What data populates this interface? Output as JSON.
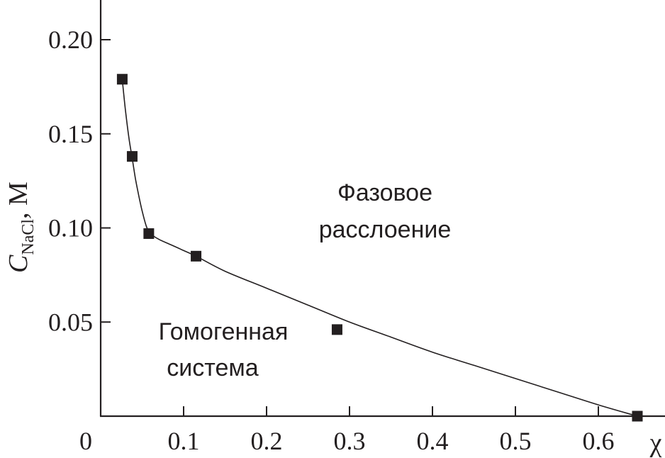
{
  "chart_data": {
    "type": "scatter",
    "title": "",
    "xlabel": "χ",
    "ylabel": {
      "main": "C",
      "subscript": "NaCl",
      "unit": ", М"
    },
    "x_origin_label": "0",
    "xlim": [
      0,
      0.68
    ],
    "ylim": [
      0,
      0.22
    ],
    "x_ticks": [
      0.1,
      0.2,
      0.3,
      0.4,
      0.5,
      0.6
    ],
    "x_tick_labels": [
      "0.1",
      "0.2",
      "0.3",
      "0.4",
      "0.5",
      "0.6"
    ],
    "y_ticks": [
      0.05,
      0.1,
      0.15,
      0.2
    ],
    "y_tick_labels": [
      "0.05",
      "0.10",
      "0.15",
      "0.20"
    ],
    "grid": false,
    "series": [
      {
        "points": [
          {
            "x": 0.026,
            "y": 0.179
          },
          {
            "x": 0.038,
            "y": 0.138
          },
          {
            "x": 0.058,
            "y": 0.097
          },
          {
            "x": 0.115,
            "y": 0.085
          },
          {
            "x": 0.285,
            "y": 0.046
          },
          {
            "x": 0.647,
            "y": 0.0
          }
        ]
      }
    ],
    "fit_curve": [
      {
        "x": 0.026,
        "y": 0.179
      },
      {
        "x": 0.03,
        "y": 0.162
      },
      {
        "x": 0.034,
        "y": 0.148
      },
      {
        "x": 0.038,
        "y": 0.137
      },
      {
        "x": 0.042,
        "y": 0.126
      },
      {
        "x": 0.046,
        "y": 0.117
      },
      {
        "x": 0.05,
        "y": 0.109
      },
      {
        "x": 0.055,
        "y": 0.101
      },
      {
        "x": 0.06,
        "y": 0.097
      },
      {
        "x": 0.07,
        "y": 0.094
      },
      {
        "x": 0.085,
        "y": 0.091
      },
      {
        "x": 0.1,
        "y": 0.088
      },
      {
        "x": 0.115,
        "y": 0.085
      },
      {
        "x": 0.15,
        "y": 0.077
      },
      {
        "x": 0.2,
        "y": 0.068
      },
      {
        "x": 0.25,
        "y": 0.059
      },
      {
        "x": 0.3,
        "y": 0.05
      },
      {
        "x": 0.35,
        "y": 0.042
      },
      {
        "x": 0.4,
        "y": 0.034
      },
      {
        "x": 0.45,
        "y": 0.027
      },
      {
        "x": 0.5,
        "y": 0.02
      },
      {
        "x": 0.55,
        "y": 0.013
      },
      {
        "x": 0.6,
        "y": 0.006
      },
      {
        "x": 0.647,
        "y": 0.0
      }
    ],
    "annotations": [
      {
        "id": "phase-separation-label",
        "lines": [
          "Фазовое",
          "расслоение"
        ]
      },
      {
        "id": "homogeneous-system-label",
        "lines": [
          "Гомогенная",
          "система"
        ]
      }
    ]
  }
}
